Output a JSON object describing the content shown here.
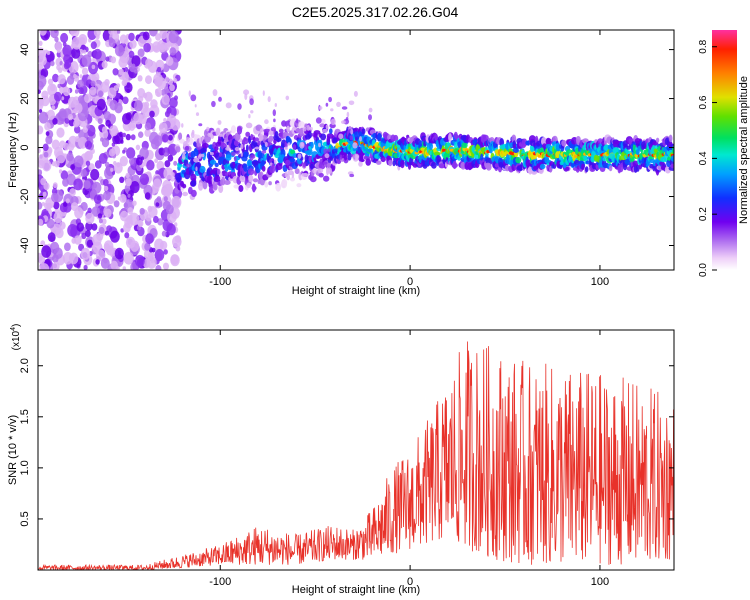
{
  "title": "C2E5.2025.317.02.26.G04",
  "chart_data": [
    {
      "type": "heatmap",
      "name": "spectrogram",
      "xlabel": "Height of straight line (km)",
      "ylabel": "Frequency (Hz)",
      "xlim": [
        -196,
        139
      ],
      "ylim": [
        -50,
        48
      ],
      "xticks": [
        -100,
        0,
        100
      ],
      "yticks": [
        -40,
        -20,
        0,
        20,
        40
      ],
      "colorbar": {
        "label": "Normalized spectral amplitude",
        "range": [
          0.0,
          0.86
        ],
        "ticks": [
          0.0,
          0.2,
          0.4,
          0.6,
          0.8
        ],
        "tick_labels": [
          "0.0",
          "0.2",
          "0.4",
          "0.6",
          "0.8"
        ]
      },
      "features": {
        "noise_region_x": [
          -196,
          -122
        ],
        "carrier_track": [
          {
            "x": -122,
            "y": -8
          },
          {
            "x": -100,
            "y": -5
          },
          {
            "x": -80,
            "y": -4
          },
          {
            "x": -60,
            "y": -2
          },
          {
            "x": -40,
            "y": 0
          },
          {
            "x": -30,
            "y": 2
          },
          {
            "x": -10,
            "y": -1
          },
          {
            "x": 0,
            "y": -2
          },
          {
            "x": 20,
            "y": -1
          },
          {
            "x": 40,
            "y": -2
          },
          {
            "x": 60,
            "y": -3
          },
          {
            "x": 80,
            "y": -3
          },
          {
            "x": 100,
            "y": -3
          },
          {
            "x": 120,
            "y": -3
          },
          {
            "x": 139,
            "y": -3
          }
        ]
      }
    },
    {
      "type": "line",
      "name": "snr",
      "xlabel": "Height of straight line (km)",
      "ylabel": "SNR (10 * v/v)",
      "y_multiplier": "(x10",
      "y_multiplier_exp": "4",
      "y_multiplier_close": ")",
      "xlim": [
        -196,
        139
      ],
      "ylim": [
        0,
        2.35
      ],
      "xticks": [
        -100,
        0,
        100
      ],
      "yticks": [
        0.5,
        1.0,
        1.5,
        2.0
      ],
      "ytick_labels": [
        "0.5",
        "1.0",
        "1.5",
        "2.0"
      ],
      "color": "#e8322a",
      "envelope": [
        {
          "x": -196,
          "lo": 0.0,
          "hi": 0.05
        },
        {
          "x": -140,
          "lo": 0.0,
          "hi": 0.05
        },
        {
          "x": -120,
          "lo": 0.02,
          "hi": 0.15
        },
        {
          "x": -100,
          "lo": 0.05,
          "hi": 0.25
        },
        {
          "x": -80,
          "lo": 0.05,
          "hi": 0.45
        },
        {
          "x": -60,
          "lo": 0.05,
          "hi": 0.35
        },
        {
          "x": -40,
          "lo": 0.1,
          "hi": 0.45
        },
        {
          "x": -30,
          "lo": 0.1,
          "hi": 0.4
        },
        {
          "x": -20,
          "lo": 0.1,
          "hi": 0.6
        },
        {
          "x": -10,
          "lo": 0.15,
          "hi": 1.0
        },
        {
          "x": 0,
          "lo": 0.2,
          "hi": 1.2
        },
        {
          "x": 10,
          "lo": 0.25,
          "hi": 1.5
        },
        {
          "x": 20,
          "lo": 0.3,
          "hi": 1.9
        },
        {
          "x": 30,
          "lo": 0.2,
          "hi": 2.3
        },
        {
          "x": 45,
          "lo": 0.1,
          "hi": 2.2
        },
        {
          "x": 60,
          "lo": 0.05,
          "hi": 2.05
        },
        {
          "x": 80,
          "lo": 0.05,
          "hi": 2.0
        },
        {
          "x": 100,
          "lo": 0.05,
          "hi": 1.95
        },
        {
          "x": 120,
          "lo": 0.05,
          "hi": 1.85
        },
        {
          "x": 139,
          "lo": 0.1,
          "hi": 1.7
        }
      ]
    }
  ],
  "colors": {
    "background": "#ffffff",
    "axis": "#000000",
    "snr_line": "#e8322a",
    "noise_purple": "#6a00e8"
  }
}
